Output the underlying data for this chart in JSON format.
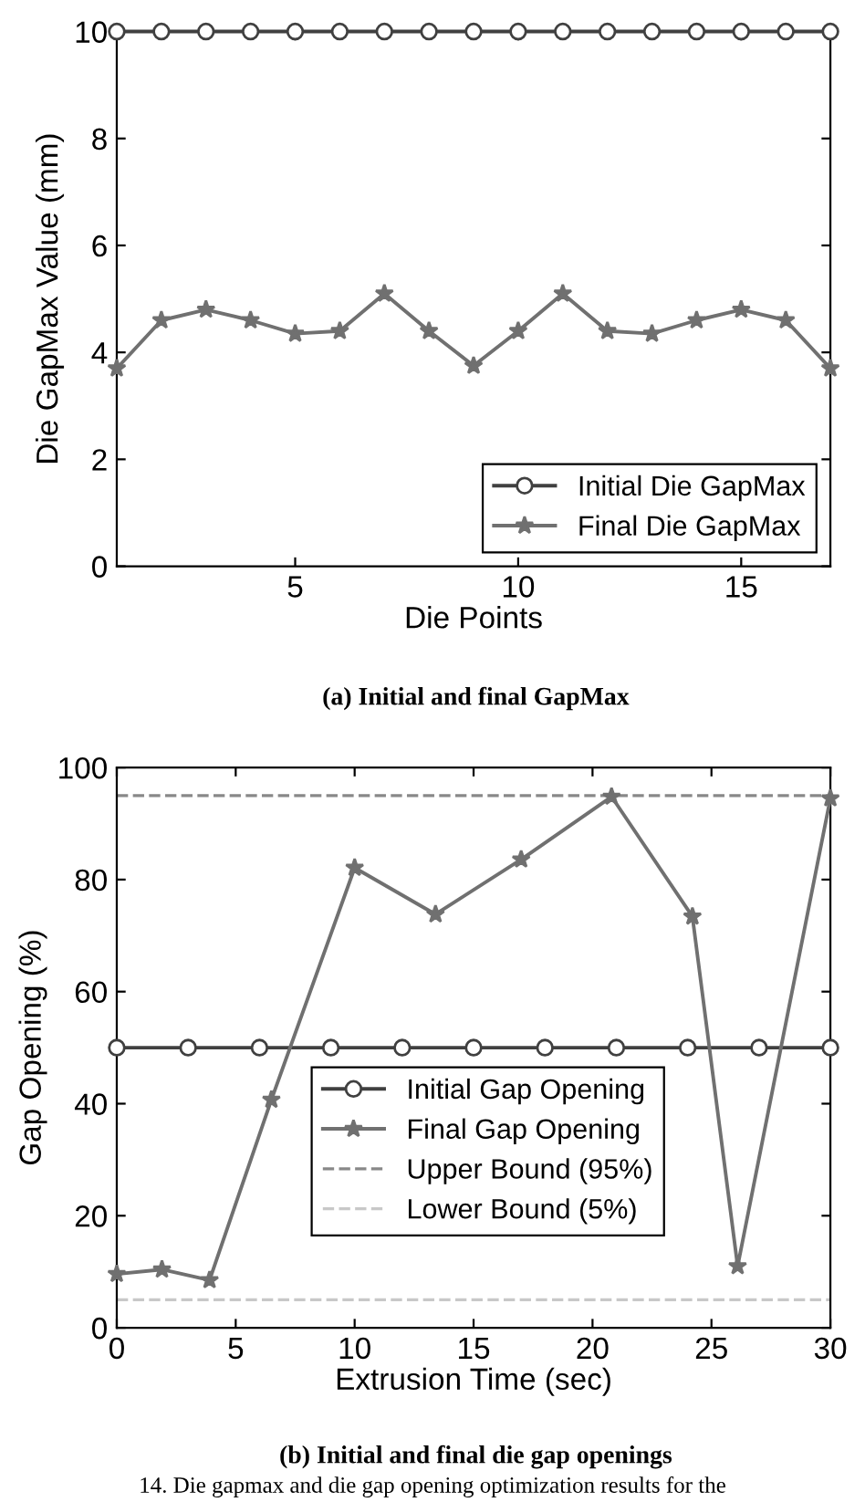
{
  "chart_data": [
    {
      "type": "line",
      "xlabel": "Die Points",
      "ylabel": "Die GapMax Value (mm)",
      "x": [
        1,
        2,
        3,
        4,
        5,
        6,
        7,
        8,
        9,
        10,
        11,
        12,
        13,
        14,
        15,
        16,
        17
      ],
      "xlim": [
        1,
        17
      ],
      "xticks": [
        5,
        10,
        15
      ],
      "ylim": [
        0,
        10
      ],
      "yticks": [
        0,
        2,
        4,
        6,
        8,
        10
      ],
      "grid": false,
      "legend": "bottom right",
      "series": [
        {
          "name": "Initial Die GapMax",
          "color": "#404040",
          "marker": "circle",
          "values": [
            10,
            10,
            10,
            10,
            10,
            10,
            10,
            10,
            10,
            10,
            10,
            10,
            10,
            10,
            10,
            10,
            10
          ]
        },
        {
          "name": "Final Die GapMax",
          "color": "#707070",
          "marker": "star",
          "values": [
            3.7,
            4.6,
            4.8,
            4.6,
            4.35,
            4.4,
            5.1,
            4.4,
            3.75,
            4.4,
            5.1,
            4.4,
            4.35,
            4.6,
            4.8,
            4.6,
            3.7
          ]
        }
      ],
      "annotations": [
        "(a) Initial and final GapMax"
      ]
    },
    {
      "type": "line",
      "xlabel": "Extrusion Time (sec)",
      "ylabel": "Gap Opening (%)",
      "xlim": [
        0,
        30
      ],
      "xticks": [
        0,
        5,
        10,
        15,
        20,
        25,
        30
      ],
      "ylim": [
        0,
        100
      ],
      "yticks": [
        0,
        20,
        40,
        60,
        80,
        100
      ],
      "grid": false,
      "legend": "bottom",
      "series": [
        {
          "name": "Initial Gap Opening",
          "color": "#404040",
          "marker": "circle",
          "x": [
            0,
            3,
            6,
            9,
            12,
            15,
            18,
            21,
            24,
            27,
            30
          ],
          "values": [
            50,
            50,
            50,
            50,
            50,
            50,
            50,
            50,
            50,
            50,
            50
          ]
        },
        {
          "name": "Final Gap Opening",
          "color": "#707070",
          "marker": "star",
          "x": [
            0,
            1.9,
            3.9,
            6.5,
            10,
            13.4,
            17,
            20.8,
            24.2,
            26.1,
            30
          ],
          "values": [
            9.6,
            10.4,
            8.5,
            40.7,
            82.1,
            73.8,
            83.6,
            94.8,
            73.4,
            11,
            94.5
          ]
        }
      ],
      "ref_lines": [
        {
          "axis": "y",
          "value": 95,
          "label": "Upper Bound (95%)",
          "color": "#888888",
          "line_style": "dashed"
        },
        {
          "axis": "y",
          "value": 5,
          "label": "Lower Bound (5%)",
          "color": "#c8c8c8",
          "line_style": "dashed"
        }
      ],
      "annotations": [
        "(b) Initial and final die gap openings",
        "14. Die gapmax and die gap opening optimization results for the"
      ]
    }
  ]
}
